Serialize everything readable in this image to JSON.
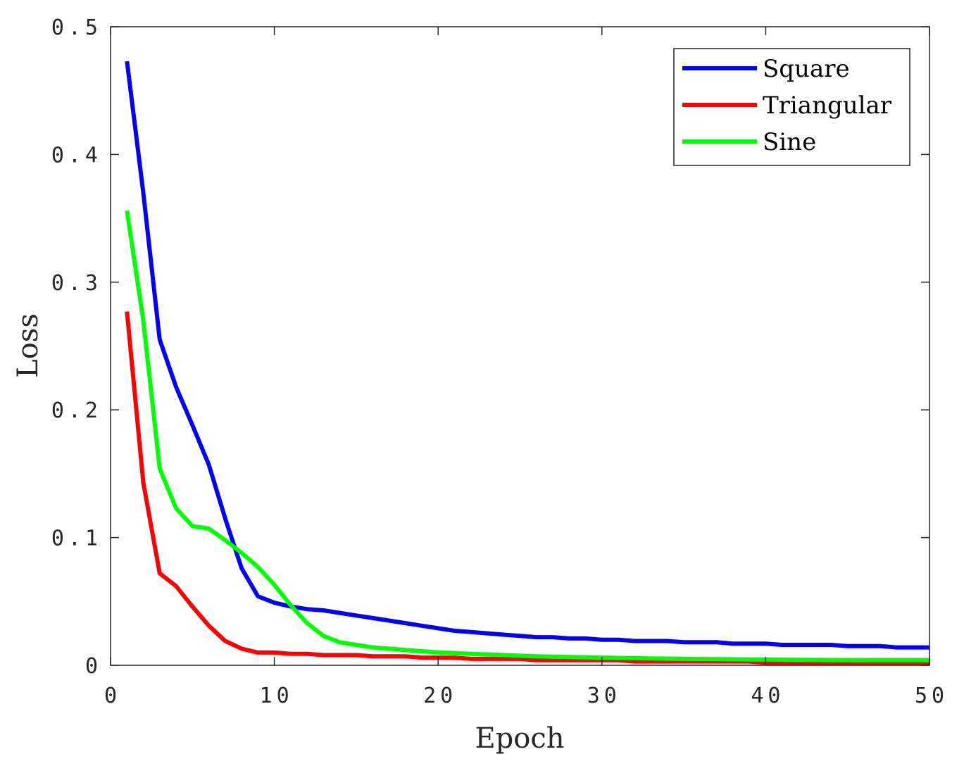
{
  "chart_data": {
    "type": "line",
    "title": "",
    "xlabel": "Epoch",
    "ylabel": "Loss",
    "xlim": [
      0,
      50
    ],
    "ylim": [
      0,
      0.5
    ],
    "xticks": [
      0,
      10,
      20,
      30,
      40,
      50
    ],
    "xtick_labels": [
      "0",
      "10",
      "20",
      "30",
      "40",
      "50"
    ],
    "yticks": [
      0,
      0.1,
      0.2,
      0.3,
      0.4,
      0.5
    ],
    "ytick_labels": [
      "0",
      "0.1",
      "0.2",
      "0.3",
      "0.4",
      "0.5"
    ],
    "grid": false,
    "legend_position": "top-right",
    "series": [
      {
        "name": "Square",
        "color": "#0000ff",
        "x": [
          1,
          2,
          3,
          4,
          5,
          6,
          7,
          8,
          9,
          10,
          11,
          12,
          13,
          14,
          15,
          16,
          17,
          18,
          19,
          20,
          21,
          22,
          23,
          24,
          25,
          26,
          27,
          28,
          29,
          30,
          31,
          32,
          33,
          34,
          35,
          36,
          37,
          38,
          39,
          40,
          41,
          42,
          43,
          44,
          45,
          46,
          47,
          48,
          49,
          50
        ],
        "y": [
          0.473,
          0.37,
          0.255,
          0.218,
          0.188,
          0.157,
          0.115,
          0.076,
          0.054,
          0.049,
          0.046,
          0.044,
          0.043,
          0.041,
          0.039,
          0.037,
          0.035,
          0.033,
          0.031,
          0.029,
          0.027,
          0.026,
          0.025,
          0.024,
          0.023,
          0.022,
          0.022,
          0.021,
          0.021,
          0.02,
          0.02,
          0.019,
          0.019,
          0.019,
          0.018,
          0.018,
          0.018,
          0.017,
          0.017,
          0.017,
          0.016,
          0.016,
          0.016,
          0.016,
          0.015,
          0.015,
          0.015,
          0.014,
          0.014,
          0.014
        ]
      },
      {
        "name": "Triangular",
        "color": "#ff0000",
        "x": [
          1,
          2,
          3,
          4,
          5,
          6,
          7,
          8,
          9,
          10,
          11,
          12,
          13,
          14,
          15,
          16,
          17,
          18,
          19,
          20,
          21,
          22,
          23,
          24,
          25,
          26,
          27,
          28,
          29,
          30,
          31,
          32,
          33,
          34,
          35,
          36,
          37,
          38,
          39,
          40,
          41,
          42,
          43,
          44,
          45,
          46,
          47,
          48,
          49,
          50
        ],
        "y": [
          0.277,
          0.143,
          0.072,
          0.062,
          0.046,
          0.031,
          0.019,
          0.013,
          0.01,
          0.01,
          0.009,
          0.009,
          0.008,
          0.008,
          0.008,
          0.007,
          0.007,
          0.007,
          0.006,
          0.006,
          0.006,
          0.005,
          0.005,
          0.005,
          0.005,
          0.004,
          0.004,
          0.004,
          0.004,
          0.004,
          0.004,
          0.003,
          0.003,
          0.003,
          0.003,
          0.003,
          0.003,
          0.003,
          0.003,
          0.002,
          0.002,
          0.002,
          0.002,
          0.002,
          0.002,
          0.002,
          0.002,
          0.002,
          0.002,
          0.002
        ]
      },
      {
        "name": "Sine",
        "color": "#00ff00",
        "x": [
          1,
          2,
          3,
          4,
          5,
          6,
          7,
          8,
          9,
          10,
          11,
          12,
          13,
          14,
          15,
          16,
          17,
          18,
          19,
          20,
          21,
          22,
          23,
          24,
          25,
          26,
          27,
          28,
          29,
          30,
          31,
          32,
          33,
          34,
          35,
          36,
          37,
          38,
          39,
          40,
          41,
          42,
          43,
          44,
          45,
          46,
          47,
          48,
          49,
          50
        ],
        "y": [
          0.356,
          0.27,
          0.154,
          0.123,
          0.109,
          0.107,
          0.098,
          0.088,
          0.077,
          0.063,
          0.047,
          0.033,
          0.023,
          0.018,
          0.016,
          0.014,
          0.013,
          0.012,
          0.011,
          0.01,
          0.0095,
          0.009,
          0.0085,
          0.008,
          0.0075,
          0.007,
          0.0068,
          0.0065,
          0.0062,
          0.006,
          0.0058,
          0.0056,
          0.0054,
          0.0052,
          0.005,
          0.0049,
          0.0048,
          0.0047,
          0.0046,
          0.0045,
          0.0044,
          0.0043,
          0.0042,
          0.0041,
          0.0041,
          0.004,
          0.004,
          0.004,
          0.004,
          0.004
        ]
      }
    ]
  }
}
